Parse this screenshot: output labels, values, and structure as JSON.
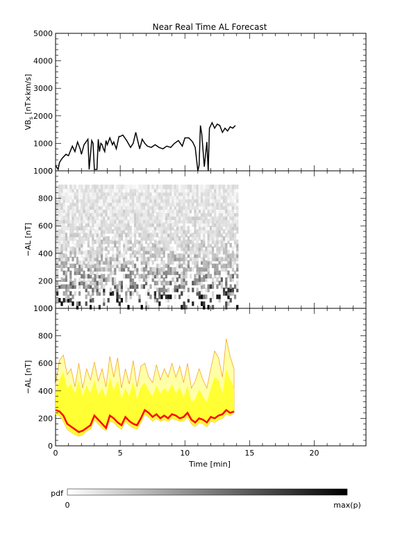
{
  "title": "Near Real Time AL Forecast",
  "colors": {
    "line": "#000000",
    "band": "#ffff33",
    "band_edge": "#f5a623",
    "forecast": "#ff0000"
  },
  "chart_data": [
    {
      "type": "line",
      "panel": "VBs",
      "ylabel": "VB_s [nT×km/s]",
      "ylabel_main": "VB",
      "ylabel_sub": "s",
      "ylabel_unit": " [nT×km/s]",
      "ylim": [
        0,
        5000
      ],
      "yticks": [
        0,
        1000,
        2000,
        3000,
        4000,
        5000
      ],
      "xlim": [
        0,
        24
      ],
      "series": [
        {
          "x": [
            0.0,
            0.2,
            0.3,
            0.5,
            0.8,
            1.0,
            1.3,
            1.5,
            1.7,
            1.9,
            2.0,
            2.2,
            2.5,
            2.6,
            2.8,
            2.9,
            3.0,
            3.2,
            3.3,
            3.4,
            3.5,
            3.6,
            3.7,
            3.8,
            3.9,
            4.0,
            4.2,
            4.4,
            4.5,
            4.7,
            4.9,
            5.0,
            5.2,
            5.5,
            5.8,
            6.0,
            6.2,
            6.5,
            6.7,
            6.9,
            7.1,
            7.4,
            7.7,
            8.0,
            8.3,
            8.6,
            8.9,
            9.2,
            9.5,
            9.8,
            10.0,
            10.3,
            10.6,
            10.8,
            11.0,
            11.1,
            11.2,
            11.3,
            11.5,
            11.7,
            11.8,
            11.9,
            12.1,
            12.3,
            12.5,
            12.7,
            12.9,
            13.1,
            13.3,
            13.5,
            13.7,
            13.9
          ],
          "y": [
            200,
            50,
            300,
            450,
            600,
            550,
            900,
            700,
            1050,
            800,
            600,
            950,
            1150,
            50,
            1100,
            1000,
            50,
            50,
            1150,
            700,
            1000,
            950,
            800,
            700,
            1100,
            950,
            1200,
            950,
            1050,
            800,
            1250,
            1250,
            1300,
            1100,
            850,
            1000,
            1400,
            800,
            1150,
            1000,
            900,
            850,
            950,
            850,
            800,
            900,
            850,
            1000,
            1100,
            900,
            1200,
            1200,
            1050,
            850,
            0,
            200,
            1650,
            1350,
            150,
            1050,
            0,
            1550,
            1750,
            1550,
            1700,
            1650,
            1400,
            1550,
            1450,
            1600,
            1550,
            1650
          ]
        }
      ]
    },
    {
      "type": "heatmap",
      "panel": "AL pdf",
      "ylabel": "−AL [nT]",
      "ylim": [
        0,
        1000
      ],
      "yticks": [
        0,
        200,
        400,
        600,
        800,
        1000
      ],
      "xlim": [
        0,
        24
      ],
      "x_extent": [
        0,
        14
      ],
      "note": "probability density of -AL, darker = higher"
    },
    {
      "type": "area",
      "panel": "AL forecast",
      "ylabel": "−AL [nT]",
      "xlabel": "Time [min]",
      "ylim": [
        0,
        1000
      ],
      "yticks": [
        0,
        200,
        400,
        600,
        800,
        1000
      ],
      "xlim": [
        0,
        24
      ],
      "xticks": [
        0,
        5,
        10,
        15,
        20
      ],
      "x": [
        0.0,
        0.3,
        0.6,
        0.9,
        1.2,
        1.5,
        1.8,
        2.1,
        2.4,
        2.7,
        3.0,
        3.3,
        3.6,
        3.9,
        4.2,
        4.5,
        4.8,
        5.1,
        5.4,
        5.7,
        6.0,
        6.3,
        6.6,
        6.9,
        7.2,
        7.5,
        7.8,
        8.1,
        8.4,
        8.7,
        9.0,
        9.3,
        9.6,
        9.9,
        10.2,
        10.5,
        10.8,
        11.1,
        11.4,
        11.7,
        12.0,
        12.3,
        12.6,
        12.9,
        13.2,
        13.5,
        13.8
      ],
      "series": [
        {
          "name": "upper",
          "values": [
            450,
            620,
            660,
            520,
            560,
            430,
            600,
            420,
            560,
            480,
            610,
            470,
            560,
            430,
            650,
            500,
            640,
            420,
            560,
            450,
            620,
            430,
            580,
            600,
            500,
            460,
            590,
            480,
            560,
            500,
            600,
            500,
            580,
            460,
            600,
            420,
            470,
            560,
            480,
            420,
            560,
            690,
            640,
            500,
            780,
            650,
            560
          ]
        },
        {
          "name": "band_top",
          "values": [
            380,
            480,
            540,
            420,
            450,
            380,
            470,
            360,
            440,
            380,
            480,
            370,
            420,
            350,
            500,
            400,
            480,
            340,
            420,
            360,
            470,
            340,
            430,
            460,
            400,
            360,
            440,
            380,
            420,
            390,
            450,
            380,
            430,
            350,
            440,
            320,
            340,
            410,
            360,
            320,
            420,
            500,
            480,
            380,
            560,
            480,
            420
          ]
        },
        {
          "name": "median",
          "values": [
            260,
            250,
            220,
            160,
            140,
            120,
            100,
            110,
            130,
            150,
            220,
            190,
            160,
            130,
            220,
            200,
            170,
            150,
            210,
            180,
            160,
            150,
            200,
            260,
            240,
            210,
            230,
            200,
            220,
            200,
            230,
            220,
            200,
            210,
            240,
            190,
            170,
            200,
            190,
            170,
            210,
            200,
            220,
            230,
            260,
            240,
            250
          ]
        },
        {
          "name": "lower",
          "values": [
            230,
            220,
            180,
            120,
            100,
            80,
            70,
            80,
            110,
            120,
            190,
            160,
            130,
            110,
            180,
            170,
            140,
            120,
            180,
            150,
            130,
            120,
            170,
            230,
            210,
            180,
            200,
            180,
            190,
            180,
            200,
            190,
            180,
            180,
            210,
            160,
            140,
            170,
            160,
            140,
            180,
            170,
            190,
            200,
            230,
            220,
            240
          ]
        }
      ]
    }
  ],
  "colorbar": {
    "label": "pdf",
    "min_label": "0",
    "max_label": "max(p)"
  }
}
